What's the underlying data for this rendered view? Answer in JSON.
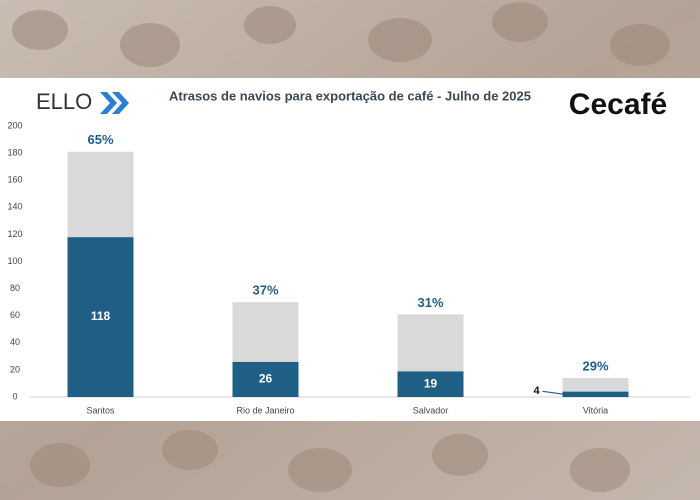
{
  "chart_data": {
    "type": "stacked-bar",
    "title": "Atrasos de navios para exportação de café - Julho de 2025",
    "logo_left": "ELLO",
    "logo_right": "Cecafé",
    "categories": [
      "Santos",
      "Rio de Janeiro",
      "Salvador",
      "Vitória"
    ],
    "series": [
      {
        "color": "#1f5f86",
        "values": [
          118,
          26,
          19,
          4
        ]
      },
      {
        "color": "#d9d9d9",
        "values": [
          63,
          44,
          42,
          10
        ]
      }
    ],
    "annotations": [
      "65%",
      "37%",
      "31%",
      "29%"
    ],
    "ylim": [
      0,
      200
    ],
    "yticks": [
      0,
      20,
      40,
      60,
      80,
      100,
      120,
      140,
      160,
      180,
      200
    ],
    "grid": false
  }
}
